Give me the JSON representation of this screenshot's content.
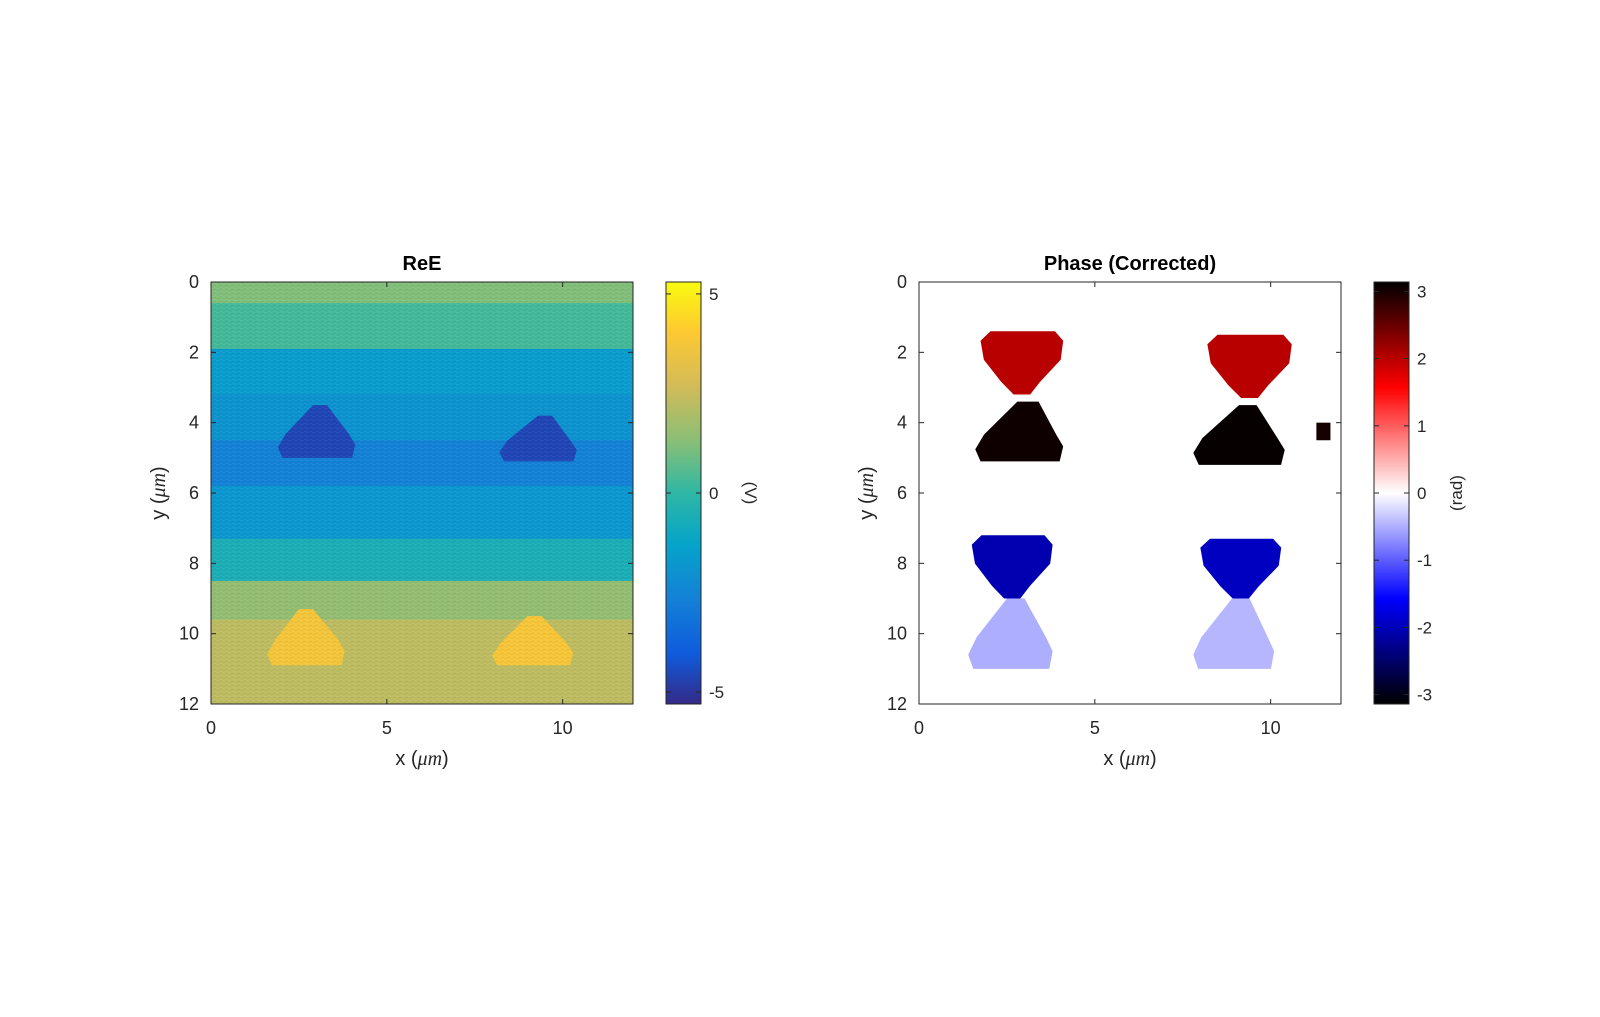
{
  "chart_data": [
    {
      "type": "heatmap",
      "title": "ReE",
      "xlabel_main": "x (",
      "xlabel_unit": "μm",
      "ylabel_main": "y (",
      "ylabel_unit": "μm",
      "xlim": [
        0,
        12
      ],
      "ylim": [
        12,
        0
      ],
      "y_reversed": true,
      "xticks": [
        0,
        5,
        10
      ],
      "yticks": [
        0,
        2,
        4,
        6,
        8,
        10,
        12
      ],
      "colorbar": {
        "label": "(V)",
        "ticks": [
          5,
          0,
          -5
        ],
        "range": [
          -5.3,
          5.3
        ],
        "colormap": "parula"
      },
      "background": {
        "rows": [
          {
            "y": [
              0.0,
              0.6
            ],
            "value": 1.2
          },
          {
            "y": [
              0.6,
              1.9
            ],
            "value": 0.3
          },
          {
            "y": [
              1.9,
              3.2
            ],
            "value": -1.6
          },
          {
            "y": [
              3.2,
              4.5
            ],
            "value": -2.0
          },
          {
            "y": [
              4.5,
              5.8
            ],
            "value": -2.6
          },
          {
            "y": [
              5.8,
              7.3
            ],
            "value": -1.8
          },
          {
            "y": [
              7.3,
              8.5
            ],
            "value": -0.6
          },
          {
            "y": [
              8.5,
              9.6
            ],
            "value": 1.5
          },
          {
            "y": [
              9.6,
              12.0
            ],
            "value": 2.3
          }
        ]
      },
      "features": [
        {
          "shape": "trapezoid",
          "x": [
            1.9,
            4.1
          ],
          "top_x": [
            2.9,
            3.3
          ],
          "y": [
            3.5,
            5.0
          ],
          "value": -4.6
        },
        {
          "shape": "trapezoid",
          "x": [
            8.2,
            10.4
          ],
          "top_x": [
            9.3,
            9.7
          ],
          "y": [
            3.8,
            5.1
          ],
          "value": -4.6
        },
        {
          "shape": "trapezoid",
          "x": [
            1.6,
            3.8
          ],
          "top_x": [
            2.5,
            2.9
          ],
          "y": [
            9.3,
            10.9
          ],
          "value": 3.7
        },
        {
          "shape": "trapezoid",
          "x": [
            8.0,
            10.3
          ],
          "top_x": [
            9.0,
            9.4
          ],
          "y": [
            9.5,
            10.9
          ],
          "value": 3.8
        }
      ]
    },
    {
      "type": "heatmap",
      "title": "Phase (Corrected)",
      "xlabel_main": "x (",
      "xlabel_unit": "μm",
      "ylabel_main": "y (",
      "ylabel_unit": "μm",
      "xlim": [
        0,
        12
      ],
      "ylim": [
        12,
        0
      ],
      "y_reversed": true,
      "xticks": [
        0,
        5,
        10
      ],
      "yticks": [
        0,
        2,
        4,
        6,
        8,
        10,
        12
      ],
      "colorbar": {
        "label": "(rad)",
        "ticks": [
          3,
          2,
          1,
          0,
          -1,
          -2,
          -3
        ],
        "range": [
          -3.14,
          3.14
        ],
        "colormap": "diverging black-blue-white-red-black"
      },
      "features": [
        {
          "shape": "heart",
          "x": [
            1.75,
            4.1
          ],
          "y": [
            1.4,
            3.2
          ],
          "value": 2.0
        },
        {
          "shape": "trapezoid",
          "x": [
            1.6,
            4.1
          ],
          "top_x": [
            2.8,
            3.4
          ],
          "y": [
            3.4,
            5.1
          ],
          "value": 3.05
        },
        {
          "shape": "heart",
          "x": [
            8.2,
            10.6
          ],
          "y": [
            1.5,
            3.3
          ],
          "value": 2.0
        },
        {
          "shape": "trapezoid",
          "x": [
            7.8,
            10.4
          ],
          "top_x": [
            9.1,
            9.6
          ],
          "y": [
            3.5,
            5.2
          ],
          "value": 3.1
        },
        {
          "shape": "rect",
          "x": [
            11.3,
            11.7
          ],
          "y": [
            4.0,
            4.5
          ],
          "value": 3.0
        },
        {
          "shape": "heart",
          "x": [
            1.5,
            3.8
          ],
          "y": [
            7.2,
            9.0
          ],
          "value": -2.05
        },
        {
          "shape": "trapezoid",
          "x": [
            1.4,
            3.8
          ],
          "top_x": [
            2.5,
            3.0
          ],
          "y": [
            9.0,
            11.0
          ],
          "value": -0.5
        },
        {
          "shape": "heart",
          "x": [
            8.0,
            10.3
          ],
          "y": [
            7.3,
            9.0
          ],
          "value": -1.95
        },
        {
          "shape": "trapezoid",
          "x": [
            7.8,
            10.1
          ],
          "top_x": [
            8.9,
            9.4
          ],
          "y": [
            9.0,
            11.0
          ],
          "value": -0.45
        }
      ]
    }
  ]
}
